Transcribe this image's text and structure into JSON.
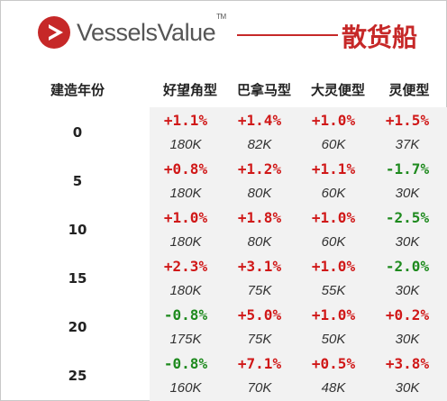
{
  "header": {
    "brand": "VesselsValue",
    "trademark": "TM",
    "title": "散货船",
    "accent_color": "#c62828"
  },
  "table": {
    "corner_label": "建造年份",
    "columns": [
      "好望角型",
      "巴拿马型",
      "大灵便型",
      "灵便型"
    ],
    "rows": [
      {
        "age": "0",
        "cells": [
          {
            "pct": "+1.1%",
            "val": "180K"
          },
          {
            "pct": "+1.4%",
            "val": "82K"
          },
          {
            "pct": "+1.0%",
            "val": "60K"
          },
          {
            "pct": "+1.5%",
            "val": "37K"
          }
        ]
      },
      {
        "age": "5",
        "cells": [
          {
            "pct": "+0.8%",
            "val": "180K"
          },
          {
            "pct": "+1.2%",
            "val": "80K"
          },
          {
            "pct": "+1.1%",
            "val": "60K"
          },
          {
            "pct": "-1.7%",
            "val": "30K"
          }
        ]
      },
      {
        "age": "10",
        "cells": [
          {
            "pct": "+1.0%",
            "val": "180K"
          },
          {
            "pct": "+1.8%",
            "val": "80K"
          },
          {
            "pct": "+1.0%",
            "val": "60K"
          },
          {
            "pct": "-2.5%",
            "val": "30K"
          }
        ]
      },
      {
        "age": "15",
        "cells": [
          {
            "pct": "+2.3%",
            "val": "180K"
          },
          {
            "pct": "+3.1%",
            "val": "75K"
          },
          {
            "pct": "+1.0%",
            "val": "55K"
          },
          {
            "pct": "-2.0%",
            "val": "30K"
          }
        ]
      },
      {
        "age": "20",
        "cells": [
          {
            "pct": "-0.8%",
            "val": "175K"
          },
          {
            "pct": "+5.0%",
            "val": "75K"
          },
          {
            "pct": "+1.0%",
            "val": "50K"
          },
          {
            "pct": "+0.2%",
            "val": "30K"
          }
        ]
      },
      {
        "age": "25",
        "cells": [
          {
            "pct": "-0.8%",
            "val": "160K"
          },
          {
            "pct": "+7.1%",
            "val": "70K"
          },
          {
            "pct": "+0.5%",
            "val": "48K"
          },
          {
            "pct": "+3.8%",
            "val": "30K"
          }
        ]
      }
    ],
    "colors": {
      "positive": "#d01818",
      "negative": "#1e8a1e"
    }
  }
}
